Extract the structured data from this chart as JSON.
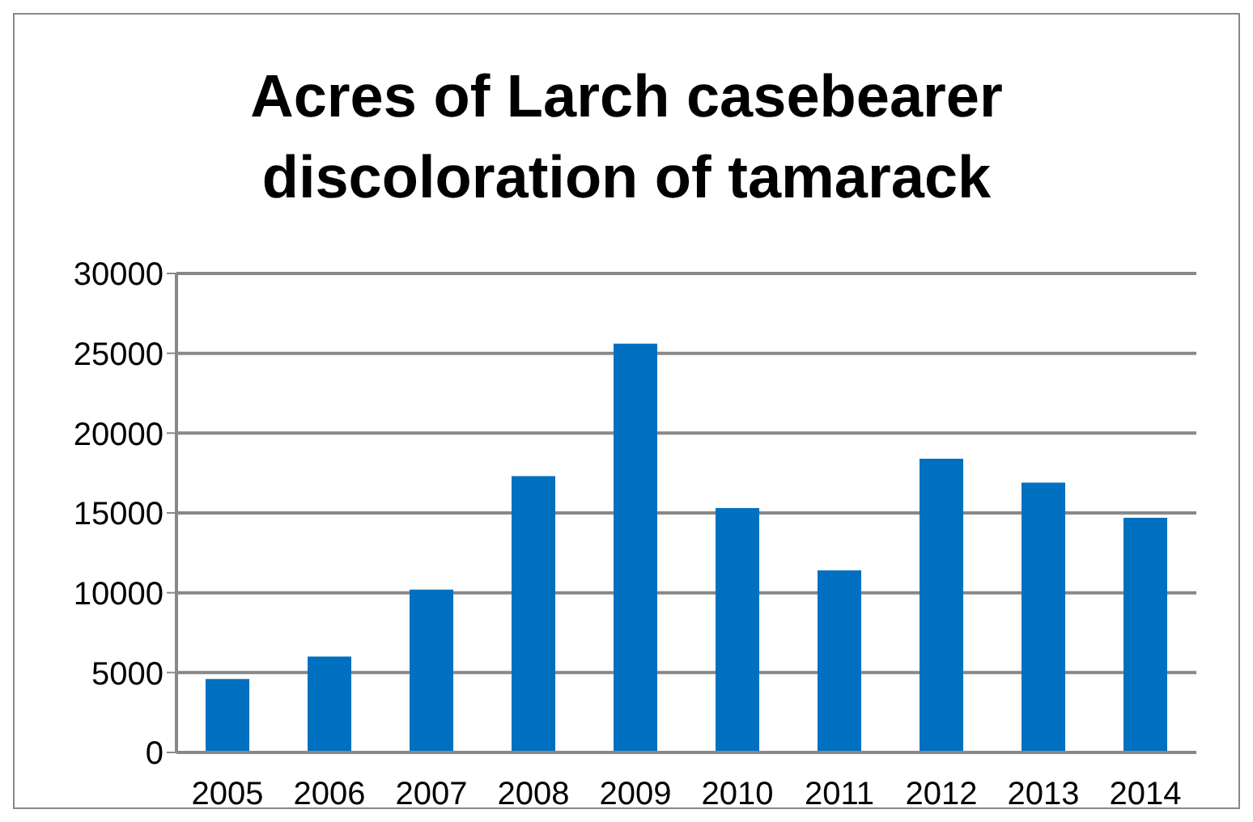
{
  "chart_data": {
    "type": "bar",
    "title": "Acres of Larch casebearer discoloration of tamarack",
    "categories": [
      "2005",
      "2006",
      "2007",
      "2008",
      "2009",
      "2010",
      "2011",
      "2012",
      "2013",
      "2014"
    ],
    "values": [
      4600,
      6000,
      10200,
      17300,
      25600,
      15300,
      11400,
      18400,
      16900,
      14700
    ],
    "color": "#0070c0",
    "ylim": [
      0,
      30000
    ],
    "yticks": [
      0,
      5000,
      10000,
      15000,
      20000,
      25000,
      30000
    ],
    "grid": "y"
  }
}
